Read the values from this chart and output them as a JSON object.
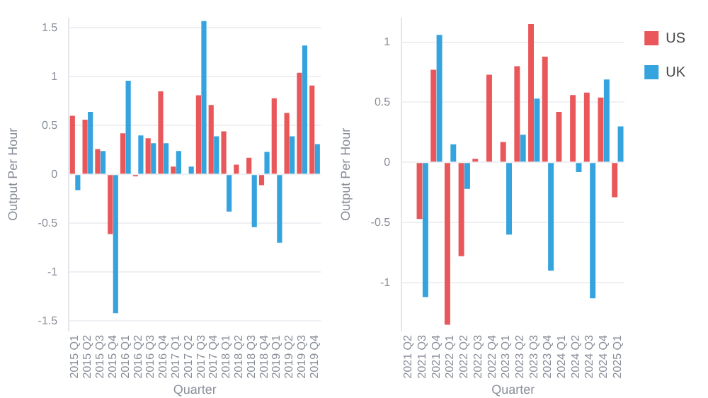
{
  "chart_data": [
    {
      "type": "bar",
      "xlabel": "Quarter",
      "ylabel": "Output Per Hour",
      "categories": [
        "2015 Q1",
        "2015 Q2",
        "2015 Q3",
        "2015 Q4",
        "2016 Q1",
        "2016 Q2",
        "2016 Q3",
        "2016 Q4",
        "2017 Q1",
        "2017 Q2",
        "2017 Q3",
        "2017 Q4",
        "2018 Q1",
        "2018 Q2",
        "2018 Q3",
        "2018 Q4",
        "2019 Q1",
        "2019 Q2",
        "2019 Q3",
        "2019 Q4"
      ],
      "series": [
        {
          "color": "#e9575b",
          "values": [
            0.6,
            0.56,
            0.26,
            -0.61,
            0.42,
            -0.02,
            0.37,
            0.85,
            0.08,
            null,
            0.81,
            0.71,
            0.44,
            0.1,
            0.17,
            -0.11,
            0.78,
            0.63,
            1.04,
            0.91
          ]
        },
        {
          "color": "#35a3dd",
          "values": [
            -0.16,
            0.64,
            0.24,
            -1.42,
            0.96,
            0.4,
            0.32,
            0.32,
            0.24,
            0.08,
            1.57,
            0.39,
            -0.38,
            null,
            -0.54,
            0.23,
            -0.7,
            0.39,
            1.32,
            0.31
          ]
        }
      ],
      "ylim": [
        -1.6,
        1.6
      ],
      "yticks": [
        -1.5,
        -1,
        -0.5,
        0,
        0.5,
        1,
        1.5
      ],
      "grid": "y",
      "legend": false
    },
    {
      "type": "bar",
      "xlabel": "Quarter",
      "ylabel": "Output Per Hour",
      "categories": [
        "2021 Q2",
        "2021 Q3",
        "2021 Q4",
        "2022 Q1",
        "2022 Q2",
        "2022 Q3",
        "2022 Q4",
        "2023 Q1",
        "2023 Q2",
        "2023 Q3",
        "2023 Q4",
        "2024 Q1",
        "2024 Q2",
        "2024 Q3",
        "2024 Q4",
        "2025 Q1"
      ],
      "series": [
        {
          "name": "US",
          "color": "#e9575b",
          "values": [
            null,
            -0.47,
            0.77,
            -1.35,
            -0.78,
            0.03,
            0.73,
            0.17,
            0.8,
            1.15,
            0.88,
            0.42,
            0.56,
            0.58,
            0.54,
            -0.29
          ]
        },
        {
          "name": "UK",
          "color": "#35a3dd",
          "values": [
            null,
            -1.12,
            1.06,
            0.15,
            -0.22,
            null,
            null,
            -0.6,
            0.23,
            0.53,
            -0.9,
            null,
            -0.08,
            -1.13,
            0.69,
            0.3
          ]
        }
      ],
      "ylim": [
        -1.4,
        1.2
      ],
      "yticks": [
        -1,
        -0.5,
        0,
        0.5,
        1
      ],
      "grid": "y",
      "legend": "right"
    }
  ]
}
